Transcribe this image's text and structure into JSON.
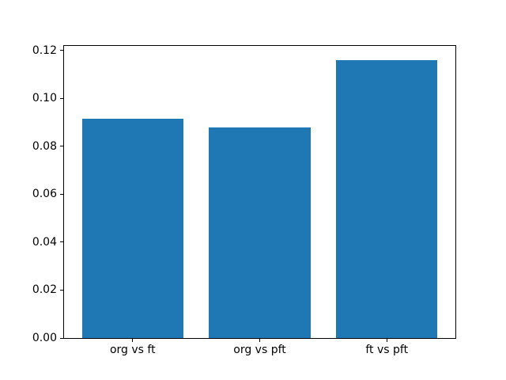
{
  "figure": {
    "background": "#ffffff",
    "spine_color": "#000000",
    "tick_color": "#000000",
    "text_color": "#000000"
  },
  "chart_data": {
    "type": "bar",
    "title": "",
    "xlabel": "",
    "ylabel": "",
    "categories": [
      "org vs ft",
      "org vs pft",
      "ft vs pft"
    ],
    "values": [
      0.0914,
      0.0878,
      0.1161
    ],
    "bar_color": "#1f77b4",
    "ylim": [
      0,
      0.1219
    ],
    "xlim": [
      -0.54,
      2.54
    ],
    "bar_width": 0.8,
    "yticks": [
      0,
      0.02,
      0.04,
      0.06,
      0.08,
      0.1,
      0.12
    ],
    "ytick_labels": [
      "0.00",
      "0.02",
      "0.04",
      "0.06",
      "0.08",
      "0.10",
      "0.12"
    ],
    "grid": false,
    "legend": "none"
  }
}
